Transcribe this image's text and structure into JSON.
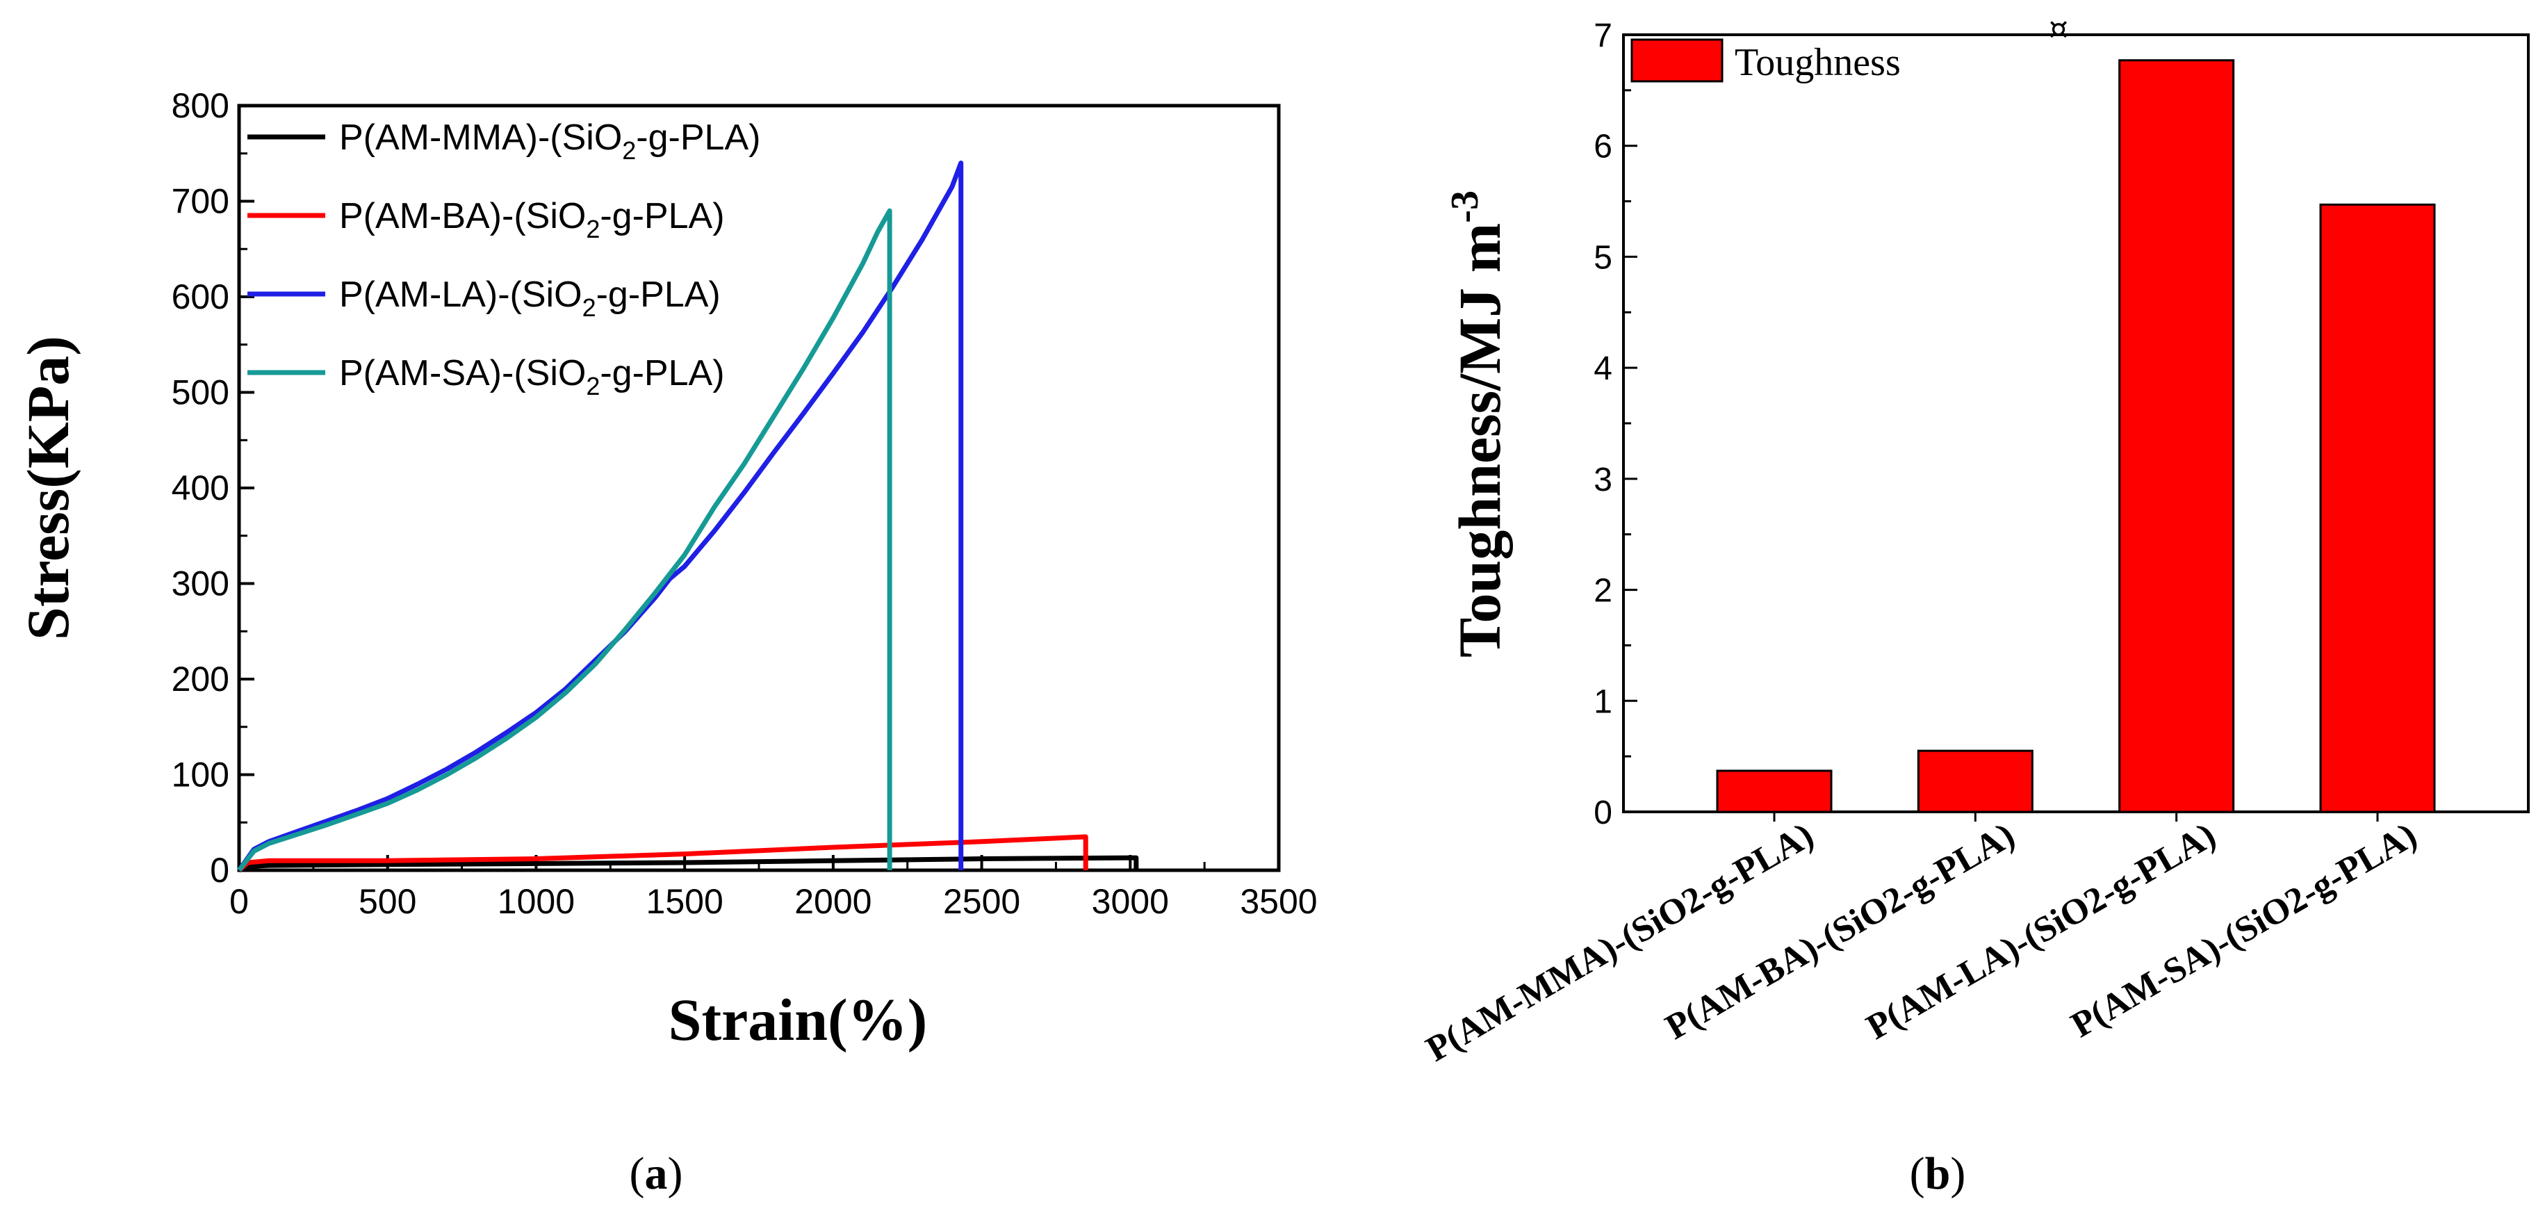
{
  "chart_data": [
    {
      "panel": "a",
      "type": "line",
      "xlabel": "Strain(%)",
      "ylabel": "Stress(KPa)",
      "xlim": [
        0,
        3500
      ],
      "ylim": [
        0,
        800
      ],
      "xticks": [
        "0",
        "500",
        "1000",
        "1500",
        "2000",
        "2500",
        "3000",
        "3500"
      ],
      "yticks": [
        "0",
        "100",
        "200",
        "300",
        "400",
        "500",
        "600",
        "700",
        "800"
      ],
      "legend_position": "top-left",
      "series": [
        {
          "name": "P(AM-MMA)-(SiO2-g-PLA)",
          "label_main": "P(AM-MMA)-(SiO",
          "label_sub": "2",
          "label_tail": "-g-PLA)",
          "color": "#000000",
          "x": [
            0,
            30,
            100,
            500,
            1000,
            1500,
            2000,
            2500,
            3000,
            3020,
            3020
          ],
          "y": [
            0,
            4,
            5,
            6,
            7,
            8,
            10,
            12,
            13,
            13,
            0
          ]
        },
        {
          "name": "P(AM-BA)-(SiO2-g-PLA)",
          "label_main": "P(AM-BA)-(SiO",
          "label_sub": "2",
          "label_tail": "-g-PLA)",
          "color": "#ff0000",
          "x": [
            0,
            30,
            100,
            500,
            1000,
            1500,
            2000,
            2500,
            2850,
            2850
          ],
          "y": [
            0,
            8,
            10,
            10,
            12,
            17,
            24,
            30,
            35,
            0
          ]
        },
        {
          "name": "P(AM-LA)-(SiO2-g-PLA)",
          "label_main": "P(AM-LA)-(SiO",
          "label_sub": "2",
          "label_tail": "-g-PLA)",
          "color": "#1f1fe6",
          "x": [
            0,
            50,
            100,
            200,
            300,
            400,
            500,
            600,
            700,
            800,
            900,
            1000,
            1100,
            1200,
            1300,
            1400,
            1450,
            1500,
            1600,
            1700,
            1800,
            1900,
            2000,
            2100,
            2200,
            2300,
            2400,
            2430,
            2430
          ],
          "y": [
            0,
            22,
            30,
            41,
            52,
            63,
            75,
            90,
            106,
            124,
            144,
            165,
            190,
            220,
            250,
            285,
            305,
            318,
            355,
            395,
            437,
            478,
            520,
            563,
            610,
            660,
            715,
            740,
            0
          ]
        },
        {
          "name": "P(AM-SA)-(SiO2-g-PLA)",
          "label_main": "P(AM-SA)-(SiO",
          "label_sub": "2",
          "label_tail": "-g-PLA)",
          "color": "#169a96",
          "x": [
            0,
            50,
            100,
            200,
            300,
            400,
            500,
            600,
            700,
            800,
            900,
            1000,
            1100,
            1200,
            1300,
            1400,
            1500,
            1600,
            1700,
            1800,
            1900,
            2000,
            2100,
            2150,
            2190,
            2190
          ],
          "y": [
            0,
            20,
            28,
            38,
            48,
            59,
            70,
            84,
            100,
            118,
            138,
            160,
            186,
            216,
            252,
            290,
            330,
            380,
            425,
            475,
            525,
            578,
            635,
            668,
            690,
            0
          ]
        }
      ]
    },
    {
      "panel": "b",
      "type": "bar",
      "ylabel": "Toughness/MJ m",
      "ylabel_sup": "-3",
      "ylim": [
        0,
        7
      ],
      "yticks": [
        "0",
        "1",
        "2",
        "3",
        "4",
        "5",
        "6",
        "7"
      ],
      "legend_position": "top-left",
      "series": [
        {
          "name": "Toughness",
          "color": "#ff0000",
          "values": [
            0.37,
            0.55,
            6.77,
            5.47
          ]
        }
      ],
      "categories": [
        "P(AM-MMA)-(SiO2-g-PLA)",
        "P(AM-BA)-(SiO2-g-PLA)",
        "P(AM-LA)-(SiO2-g-PLA)",
        "P(AM-SA)-(SiO2-g-PLA)"
      ],
      "annotation": "¤"
    }
  ],
  "panel_labels": {
    "a_open": "(",
    "a_letter": "a",
    "a_close": ")",
    "b_open": "(",
    "b_letter": "b",
    "b_close": ")"
  }
}
